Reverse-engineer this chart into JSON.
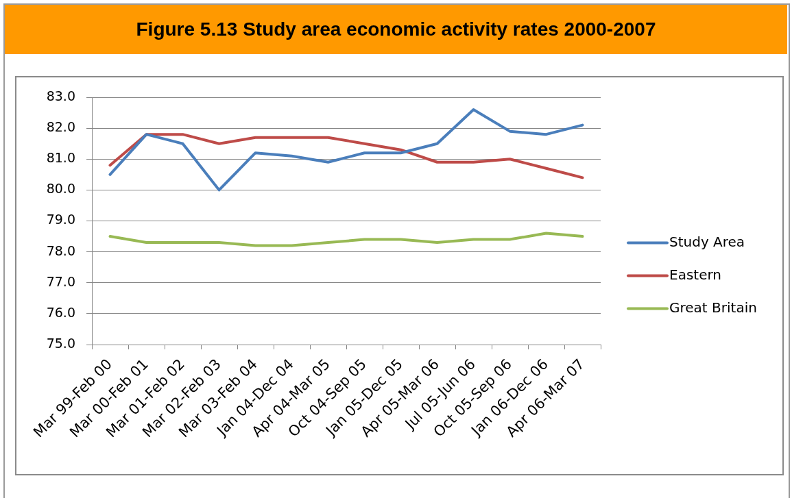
{
  "chart_data": {
    "type": "line",
    "title": "Figure 5.13 Study area economic activity rates 2000-2007",
    "categories": [
      "Mar 99-Feb 00",
      "Mar 00-Feb 01",
      "Mar 01-Feb 02",
      "Mar 02-Feb 03",
      "Mar 03-Feb 04",
      "Jan 04-Dec 04",
      "Apr 04-Mar 05",
      "Oct 04-Sep 05",
      "Jan 05-Dec 05",
      "Apr 05-Mar 06",
      "Jul 05-Jun 06",
      "Oct 05-Sep 06",
      "Jan 06-Dec 06",
      "Apr 06-Mar 07"
    ],
    "series": [
      {
        "name": "Study Area",
        "color": "#4a7ebb",
        "values": [
          80.5,
          81.8,
          81.5,
          80.0,
          81.2,
          81.1,
          80.9,
          81.2,
          81.2,
          81.5,
          82.6,
          81.9,
          81.8,
          82.1
        ]
      },
      {
        "name": "Eastern",
        "color": "#be4b48",
        "values": [
          80.8,
          81.8,
          81.8,
          81.5,
          81.7,
          81.7,
          81.7,
          81.5,
          81.3,
          80.9,
          80.9,
          81.0,
          80.7,
          80.4
        ]
      },
      {
        "name": "Great Britain",
        "color": "#98b954",
        "values": [
          78.5,
          78.3,
          78.3,
          78.3,
          78.2,
          78.2,
          78.3,
          78.4,
          78.4,
          78.3,
          78.4,
          78.4,
          78.6,
          78.5
        ]
      }
    ],
    "ylim": [
      75,
      83
    ],
    "yticks": [
      {
        "value": 75,
        "label": "75.0"
      },
      {
        "value": 76,
        "label": "76.0"
      },
      {
        "value": 77,
        "label": "77.0"
      },
      {
        "value": 78,
        "label": "78.0"
      },
      {
        "value": 79,
        "label": "79.0"
      },
      {
        "value": 80,
        "label": "80.0"
      },
      {
        "value": 81,
        "label": "81.0"
      },
      {
        "value": 82,
        "label": "82.0"
      },
      {
        "value": 83,
        "label": "83.0"
      }
    ],
    "grid": "y",
    "legend": "right"
  }
}
